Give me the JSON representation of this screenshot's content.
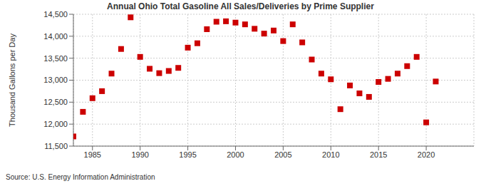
{
  "chart_data": {
    "type": "scatter",
    "title": "Annual Ohio Total Gasoline All Sales/Deliveries by Prime Supplier",
    "y_label": "Thousand Gallons per Day",
    "source": "Source: U.S. Energy Information Administration",
    "x": [
      1983,
      1984,
      1985,
      1986,
      1987,
      1988,
      1989,
      1990,
      1991,
      1992,
      1993,
      1994,
      1995,
      1996,
      1997,
      1998,
      1999,
      2000,
      2001,
      2002,
      2003,
      2004,
      2005,
      2006,
      2007,
      2008,
      2009,
      2010,
      2011,
      2012,
      2013,
      2014,
      2015,
      2016,
      2017,
      2018,
      2019,
      2020,
      2021
    ],
    "values": [
      11720,
      12280,
      12590,
      12750,
      13150,
      13710,
      14430,
      13530,
      13260,
      13160,
      13210,
      13280,
      13740,
      13840,
      14160,
      14330,
      14340,
      14310,
      14270,
      14170,
      14060,
      14130,
      13890,
      14270,
      13860,
      13470,
      13150,
      13020,
      12340,
      12880,
      12700,
      12620,
      12960,
      13030,
      13150,
      13320,
      13530,
      12040,
      12970
    ],
    "color": "#cc0000",
    "marker": "square",
    "xlim": [
      1983,
      2025
    ],
    "xticks": [
      1985,
      1990,
      1995,
      2000,
      2005,
      2010,
      2015,
      2020
    ],
    "ylim": [
      11500,
      14500
    ],
    "yticks": [
      {
        "value": 11500,
        "label": "11,500"
      },
      {
        "value": 12000,
        "label": "12,000"
      },
      {
        "value": 12500,
        "label": "12,500"
      },
      {
        "value": 13000,
        "label": "13,000"
      },
      {
        "value": 13500,
        "label": "13,500"
      },
      {
        "value": 14000,
        "label": "14,000"
      },
      {
        "value": 14500,
        "label": "14,500"
      }
    ],
    "grid": true
  }
}
